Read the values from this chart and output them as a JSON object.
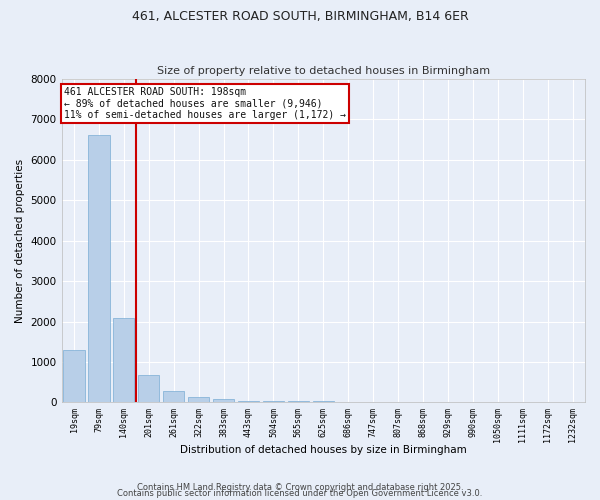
{
  "title1": "461, ALCESTER ROAD SOUTH, BIRMINGHAM, B14 6ER",
  "title2": "Size of property relative to detached houses in Birmingham",
  "xlabel": "Distribution of detached houses by size in Birmingham",
  "ylabel": "Number of detached properties",
  "categories": [
    "19sqm",
    "79sqm",
    "140sqm",
    "201sqm",
    "261sqm",
    "322sqm",
    "383sqm",
    "443sqm",
    "504sqm",
    "565sqm",
    "625sqm",
    "686sqm",
    "747sqm",
    "807sqm",
    "868sqm",
    "929sqm",
    "990sqm",
    "1050sqm",
    "1111sqm",
    "1172sqm",
    "1232sqm"
  ],
  "values": [
    1300,
    6620,
    2090,
    680,
    290,
    130,
    75,
    45,
    35,
    30,
    25,
    20,
    15,
    12,
    10,
    8,
    6,
    5,
    4,
    3,
    2
  ],
  "bar_color": "#b8cfe8",
  "bar_edge_color": "#7aadd4",
  "bg_color": "#e8eef8",
  "grid_color": "#ffffff",
  "annotation_line1": "461 ALCESTER ROAD SOUTH: 198sqm",
  "annotation_line2": "← 89% of detached houses are smaller (9,946)",
  "annotation_line3": "11% of semi-detached houses are larger (1,172) →",
  "vline_color": "#cc0000",
  "annotation_box_color": "#cc0000",
  "ylim": [
    0,
    8000
  ],
  "yticks": [
    0,
    1000,
    2000,
    3000,
    4000,
    5000,
    6000,
    7000,
    8000
  ],
  "footer1": "Contains HM Land Registry data © Crown copyright and database right 2025.",
  "footer2": "Contains public sector information licensed under the Open Government Licence v3.0."
}
